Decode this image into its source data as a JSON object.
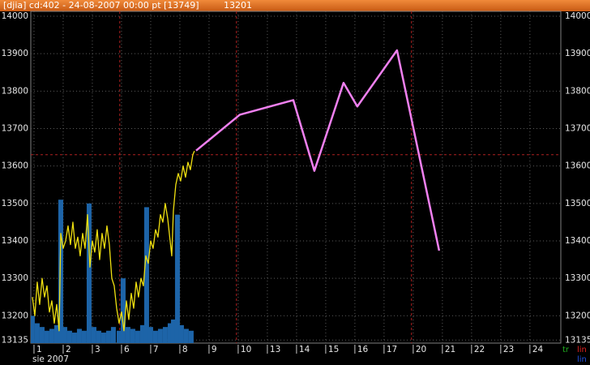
{
  "chart_data": {
    "type": "line",
    "title": "[djia] cd:402 - 24-08-2007  00:00 pt [13749]",
    "subtitle": "13201",
    "x_caption": "sie 2007",
    "xlim": [
      -0.11,
      18.06
    ],
    "ylim": [
      13127,
      14013
    ],
    "yticks": [
      14000,
      13900,
      13800,
      13700,
      13600,
      13500,
      13400,
      13300,
      13200,
      13135
    ],
    "xticks": [
      {
        "value": 0,
        "label": "1"
      },
      {
        "value": 1,
        "label": "2"
      },
      {
        "value": 2,
        "label": "3"
      },
      {
        "value": 3,
        "label": "6"
      },
      {
        "value": 4,
        "label": "7"
      },
      {
        "value": 5,
        "label": "8"
      },
      {
        "value": 6,
        "label": "9"
      },
      {
        "value": 7,
        "label": "10"
      },
      {
        "value": 8,
        "label": "13"
      },
      {
        "value": 9,
        "label": "14"
      },
      {
        "value": 10,
        "label": "15"
      },
      {
        "value": 11,
        "label": "16"
      },
      {
        "value": 12,
        "label": "17"
      },
      {
        "value": 13,
        "label": "20"
      },
      {
        "value": 14,
        "label": "21"
      },
      {
        "value": 15,
        "label": "22"
      },
      {
        "value": 16,
        "label": "23"
      },
      {
        "value": 17,
        "label": "24"
      }
    ],
    "grid": true,
    "major_grid_x": [
      2.94,
      6.94,
      12.94
    ],
    "reference_line_y": 13630,
    "series": [
      {
        "kind": "bar",
        "color": "#1d64a8",
        "x": [
          -0.056,
          0.111,
          0.278,
          0.444,
          0.611,
          0.778,
          0.917,
          1.056,
          1.222,
          1.389,
          1.556,
          1.722,
          1.889,
          2.056,
          2.222,
          2.389,
          2.556,
          2.722,
          2.917,
          3.056,
          3.222,
          3.389,
          3.556,
          3.722,
          3.861,
          4.0,
          4.167,
          4.333,
          4.5,
          4.667,
          4.778,
          4.917,
          5.056,
          5.222,
          5.389
        ],
        "values": [
          13200,
          13180,
          13170,
          13160,
          13165,
          13175,
          13510,
          13170,
          13160,
          13155,
          13165,
          13160,
          13500,
          13170,
          13160,
          13155,
          13160,
          13170,
          13160,
          13300,
          13170,
          13165,
          13160,
          13175,
          13490,
          13170,
          13160,
          13165,
          13170,
          13180,
          13190,
          13470,
          13175,
          13165,
          13160
        ]
      },
      {
        "kind": "line",
        "color": "#f0e010",
        "x": [
          -0.056,
          0.028,
          0.111,
          0.194,
          0.278,
          0.361,
          0.444,
          0.528,
          0.611,
          0.694,
          0.778,
          0.861,
          0.917,
          1.0,
          1.083,
          1.167,
          1.25,
          1.333,
          1.417,
          1.5,
          1.583,
          1.667,
          1.75,
          1.833,
          1.917,
          2.0,
          2.083,
          2.167,
          2.25,
          2.333,
          2.417,
          2.5,
          2.583,
          2.667,
          2.75,
          2.833,
          2.917,
          3.0,
          3.083,
          3.167,
          3.25,
          3.333,
          3.417,
          3.5,
          3.583,
          3.667,
          3.75,
          3.833,
          3.917,
          4.0,
          4.083,
          4.167,
          4.25,
          4.333,
          4.417,
          4.5,
          4.583,
          4.667,
          4.722,
          4.778,
          4.861,
          4.944,
          5.028,
          5.111,
          5.194,
          5.278,
          5.361,
          5.444,
          5.5
        ],
        "values": [
          13250,
          13200,
          13290,
          13230,
          13300,
          13250,
          13280,
          13210,
          13240,
          13180,
          13230,
          13160,
          13420,
          13380,
          13400,
          13440,
          13390,
          13450,
          13380,
          13410,
          13360,
          13420,
          13380,
          13470,
          13330,
          13400,
          13370,
          13430,
          13350,
          13420,
          13380,
          13440,
          13390,
          13300,
          13280,
          13220,
          13180,
          13210,
          13160,
          13240,
          13190,
          13260,
          13220,
          13290,
          13250,
          13300,
          13280,
          13360,
          13340,
          13400,
          13380,
          13430,
          13410,
          13470,
          13450,
          13500,
          13460,
          13400,
          13360,
          13480,
          13550,
          13580,
          13560,
          13600,
          13570,
          13610,
          13590,
          13630,
          13640
        ]
      },
      {
        "kind": "line",
        "color": "#f080f0",
        "x": [
          5.556,
          7.056,
          8.889,
          9.611,
          10.611,
          11.083,
          12.444,
          13.889
        ],
        "values": [
          13641,
          13737,
          13776,
          13587,
          13822,
          13759,
          13909,
          13374
        ]
      }
    ],
    "legend": [
      {
        "label": "tr",
        "color": "#20b020"
      },
      {
        "label": "lin",
        "color": "#e02020"
      },
      {
        "label": "lin",
        "color": "#2050e0"
      }
    ]
  }
}
